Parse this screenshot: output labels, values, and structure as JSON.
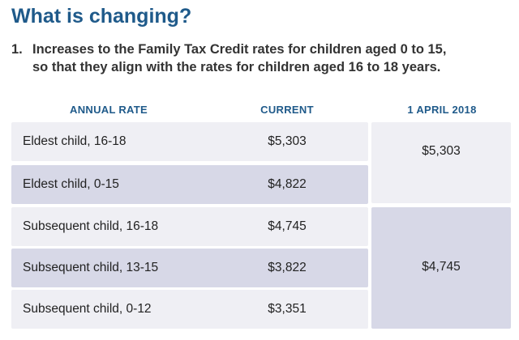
{
  "heading": "What is changing?",
  "point": {
    "number": "1.",
    "line1": "Increases to the Family Tax Credit rates for children aged 0 to 15,",
    "line2": "so that they align with the rates for children aged 16 to 18 years."
  },
  "table": {
    "headers": {
      "rate": "ANNUAL RATE",
      "current": "CURRENT",
      "new": "1 APRIL 2018"
    },
    "rows": [
      {
        "label": "Eldest child, 16-18",
        "current": "$5,303"
      },
      {
        "label": "Eldest child, 0-15",
        "current": "$4,822"
      },
      {
        "label": "Subsequent child, 16-18",
        "current": "$4,745"
      },
      {
        "label": "Subsequent child, 13-15",
        "current": "$3,822"
      },
      {
        "label": "Subsequent child, 0-12",
        "current": "$3,351"
      }
    ],
    "new_rates": [
      {
        "value": "$5,303"
      },
      {
        "value": "$4,745"
      }
    ]
  },
  "colors": {
    "heading": "#1f5a8a",
    "row_light": "#efeff4",
    "row_dark": "#d7d8e7"
  }
}
